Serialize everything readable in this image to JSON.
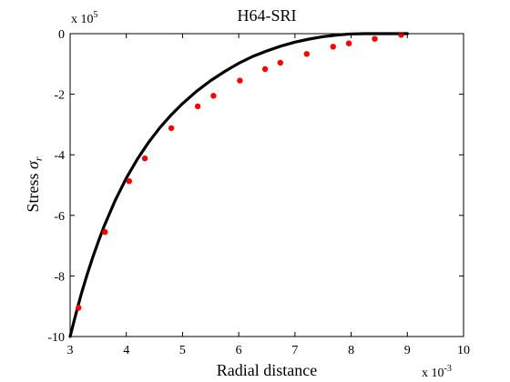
{
  "chart_data": {
    "type": "line",
    "title": "H64-SRI",
    "xlabel": "Radial distance",
    "ylabel_text": "Stress ",
    "ylabel_symbol": "σ",
    "ylabel_subscript": "r",
    "x_multiplier": {
      "base": "x 10",
      "exp": "-3"
    },
    "y_multiplier": {
      "base": "x 10",
      "exp": "5"
    },
    "xlim": [
      3,
      10
    ],
    "ylim": [
      -10,
      0
    ],
    "x_ticks": [
      3,
      4,
      5,
      6,
      7,
      8,
      9,
      10
    ],
    "y_ticks": [
      -10,
      -8,
      -6,
      -4,
      -2,
      0
    ],
    "x_tick_labels": [
      "3",
      "4",
      "5",
      "6",
      "7",
      "8",
      "9",
      "10"
    ],
    "y_tick_labels": [
      "-10",
      "-8",
      "-6",
      "-4",
      "-2",
      "0"
    ],
    "grid": false,
    "colors": {
      "curve": "#000000",
      "markers": "#ff0000"
    },
    "series": [
      {
        "kind": "curve",
        "x": [
          3.0,
          3.1,
          3.2,
          3.3,
          3.4,
          3.5,
          3.6,
          3.8,
          4.0,
          4.2,
          4.4,
          4.6,
          4.8,
          5.0,
          5.25,
          5.5,
          5.75,
          6.0,
          6.25,
          6.5,
          6.75,
          7.0,
          7.25,
          7.5,
          7.75,
          8.0,
          8.25,
          8.5,
          8.75,
          9.0
        ],
        "y": [
          -10.0,
          -9.27,
          -8.59,
          -7.97,
          -7.4,
          -6.87,
          -6.38,
          -5.51,
          -4.77,
          -4.13,
          -3.58,
          -3.1,
          -2.68,
          -2.31,
          -1.9,
          -1.55,
          -1.25,
          -0.98,
          -0.75,
          -0.57,
          -0.41,
          -0.28,
          -0.18,
          -0.1,
          -0.044,
          -0.01,
          0.0,
          0.0,
          0.0,
          0.0
        ]
      },
      {
        "kind": "markers",
        "x": [
          3.15,
          3.62,
          4.05,
          4.33,
          4.8,
          5.27,
          5.55,
          6.02,
          6.47,
          6.74,
          7.21,
          7.68,
          7.96,
          8.42,
          8.89
        ],
        "y": [
          -9.05,
          -6.55,
          -4.87,
          -4.12,
          -3.12,
          -2.4,
          -2.05,
          -1.55,
          -1.17,
          -0.96,
          -0.67,
          -0.43,
          -0.32,
          -0.17,
          -0.04
        ]
      }
    ]
  }
}
